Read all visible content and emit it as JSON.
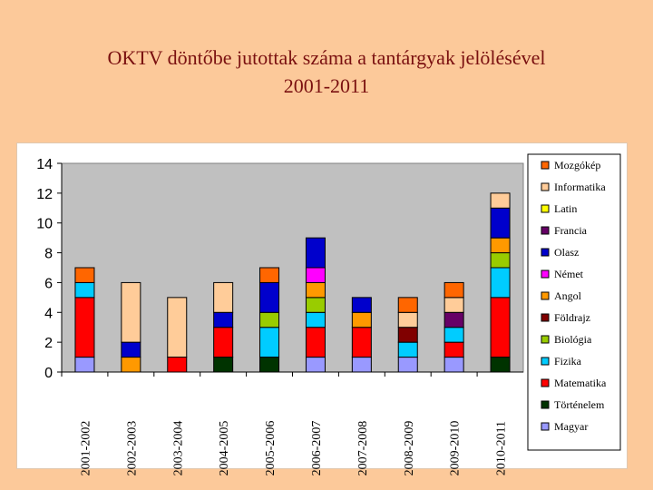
{
  "header": {
    "title_line1": "OKTV döntőbe jutottak száma a tantárgyak jelölésével",
    "title_line2": "2001-2011"
  },
  "chart_data": {
    "type": "bar",
    "stacked": true,
    "title": "",
    "xlabel": "",
    "ylabel": "",
    "ylim": [
      0,
      14
    ],
    "yticks": [
      0,
      2,
      4,
      6,
      8,
      10,
      12,
      14
    ],
    "grid": false,
    "legend_position": "right",
    "plot_background": "#c0c0c0",
    "categories": [
      "2001-2002",
      "2002-2003",
      "2003-2004",
      "2004-2005",
      "2005-2006",
      "2006-2007",
      "2007-2008",
      "2008-2009",
      "2009-2010",
      "2010-2011"
    ],
    "series": [
      {
        "name": "Magyar",
        "color": "#9999ff",
        "values": [
          1,
          0,
          0,
          0,
          0,
          1,
          1,
          1,
          1,
          0
        ]
      },
      {
        "name": "Történelem",
        "color": "#003300",
        "values": [
          0,
          0,
          0,
          1,
          1,
          0,
          0,
          0,
          0,
          1
        ]
      },
      {
        "name": "Matematika",
        "color": "#ff0000",
        "values": [
          4,
          0,
          1,
          2,
          0,
          2,
          2,
          0,
          1,
          4
        ]
      },
      {
        "name": "Fizika",
        "color": "#00ccff",
        "values": [
          1,
          0,
          0,
          0,
          2,
          1,
          0,
          1,
          1,
          2
        ]
      },
      {
        "name": "Biológia",
        "color": "#99cc00",
        "values": [
          0,
          0,
          0,
          0,
          1,
          1,
          0,
          0,
          0,
          1
        ]
      },
      {
        "name": "Földrajz",
        "color": "#800000",
        "values": [
          0,
          0,
          0,
          0,
          0,
          0,
          0,
          1,
          0,
          0
        ]
      },
      {
        "name": "Angol",
        "color": "#ff9900",
        "values": [
          0,
          1,
          0,
          0,
          0,
          1,
          1,
          0,
          0,
          1
        ]
      },
      {
        "name": "Német",
        "color": "#ff00ff",
        "values": [
          0,
          0,
          0,
          0,
          0,
          1,
          0,
          0,
          0,
          0
        ]
      },
      {
        "name": "Olasz",
        "color": "#0000cc",
        "values": [
          0,
          1,
          0,
          1,
          2,
          2,
          1,
          0,
          0,
          2
        ]
      },
      {
        "name": "Francia",
        "color": "#660066",
        "values": [
          0,
          0,
          0,
          0,
          0,
          0,
          0,
          0,
          1,
          0
        ]
      },
      {
        "name": "Latin",
        "color": "#ffff00",
        "values": [
          0,
          0,
          0,
          0,
          0,
          0,
          0,
          0,
          0,
          0
        ]
      },
      {
        "name": "Informatika",
        "color": "#ffcc99",
        "values": [
          0,
          4,
          4,
          2,
          0,
          0,
          0,
          1,
          1,
          1
        ]
      },
      {
        "name": "Mozgókép",
        "color": "#ff6600",
        "values": [
          1,
          0,
          0,
          0,
          1,
          0,
          0,
          1,
          1,
          0
        ]
      }
    ]
  }
}
